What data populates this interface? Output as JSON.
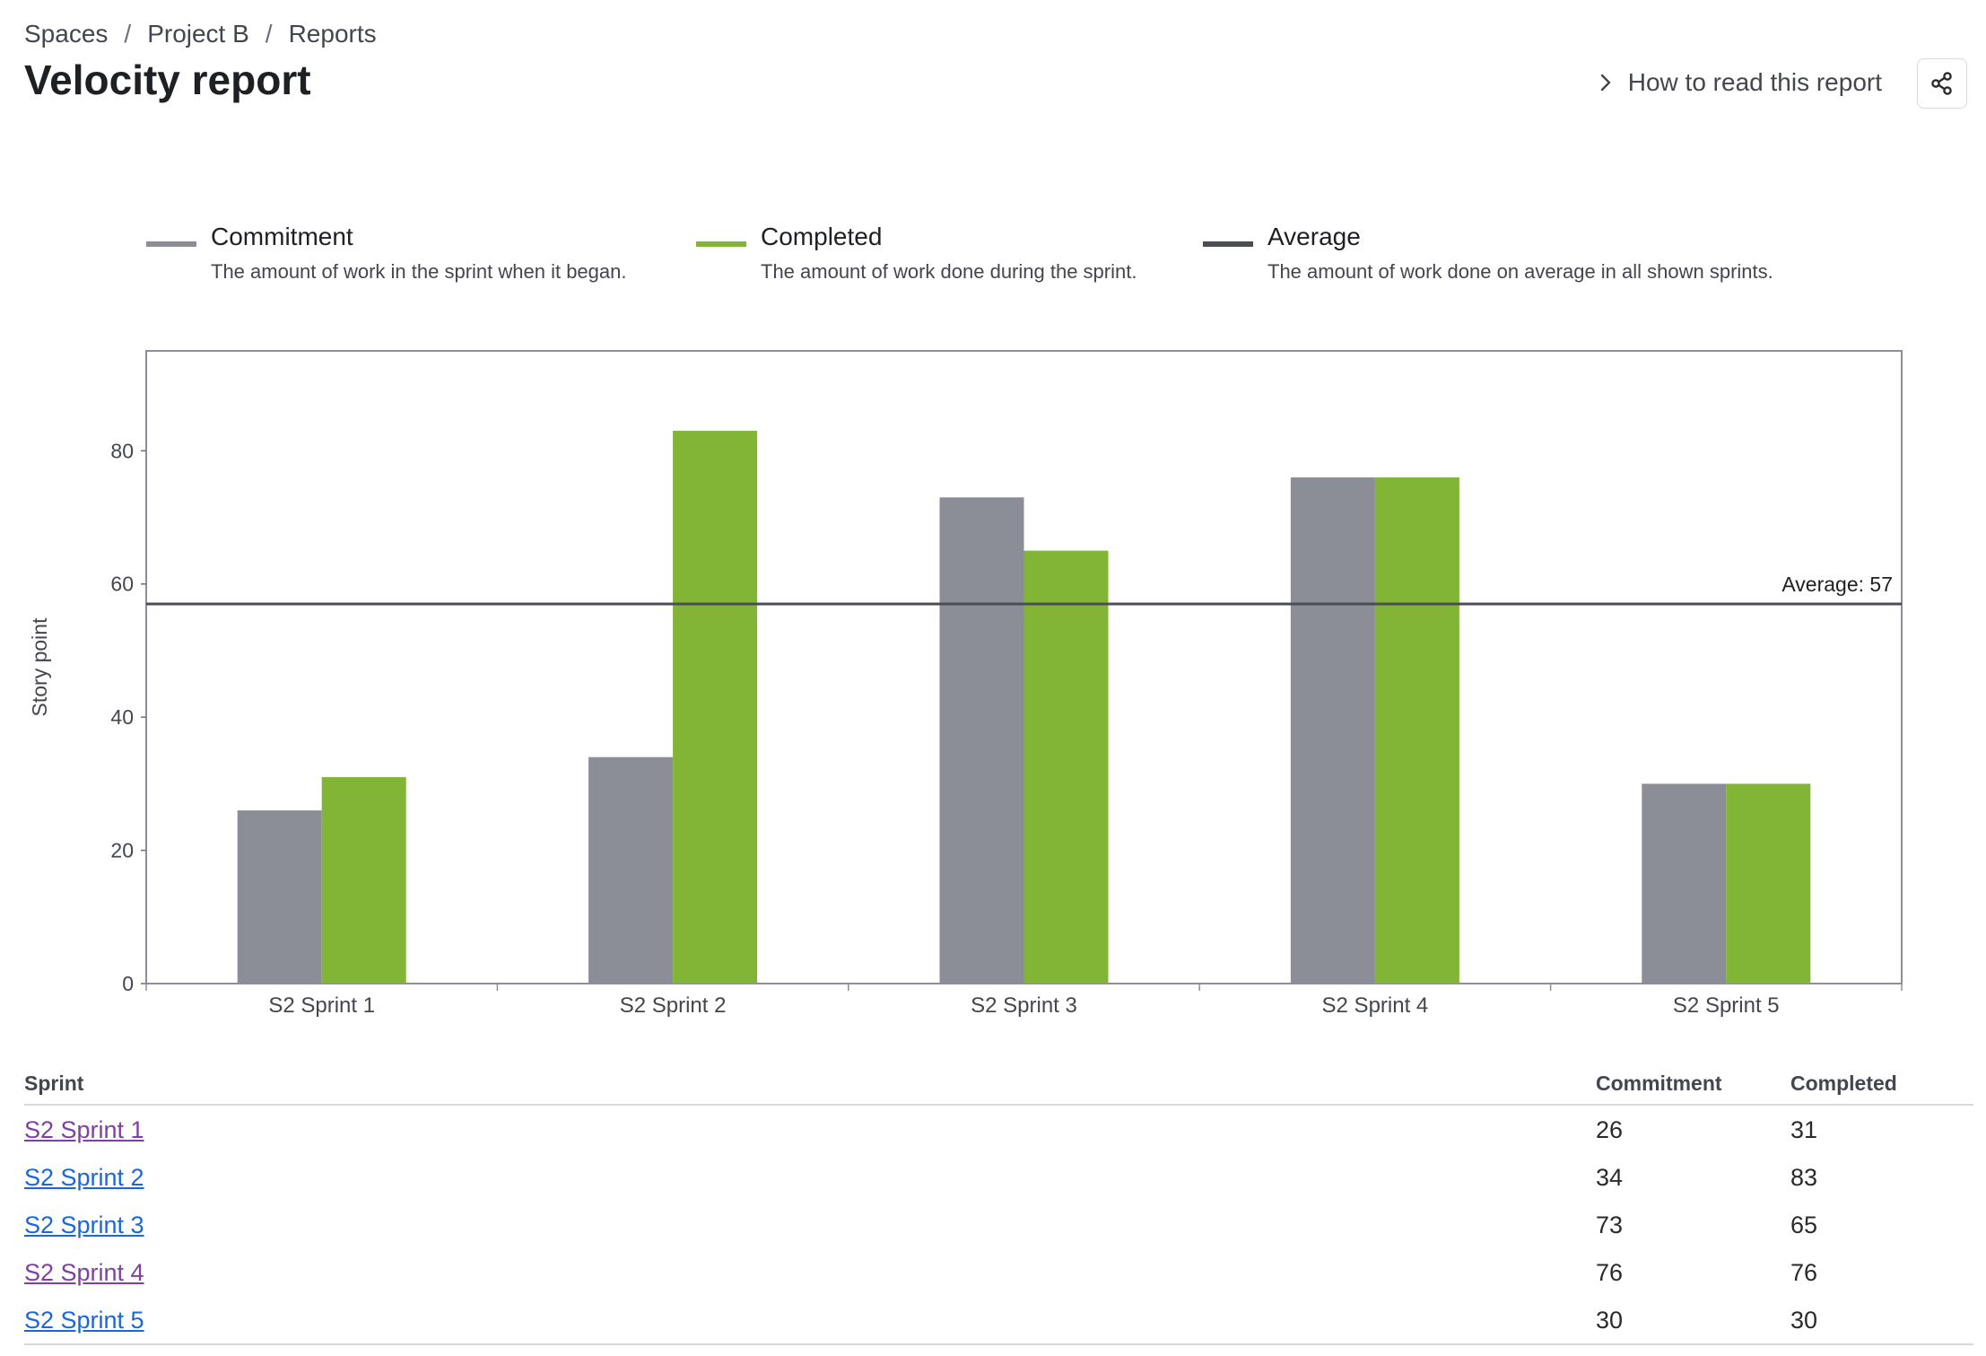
{
  "breadcrumb": [
    "Spaces",
    "Project B",
    "Reports"
  ],
  "breadcrumb_separator": "/",
  "page_title": "Velocity report",
  "how_to_read": {
    "label": "How to read this report",
    "icon": "chevron-right-icon"
  },
  "share_button": {
    "icon": "share-icon"
  },
  "legend": [
    {
      "name": "Commitment",
      "description": "The amount of work in the sprint when it began.",
      "color": "#8b8d97"
    },
    {
      "name": "Completed",
      "description": "The amount of work done during the sprint.",
      "color": "#82b536"
    },
    {
      "name": "Average",
      "description": "The amount of work done on average in all shown sprints.",
      "color": "#4b4d55"
    }
  ],
  "chart_data": {
    "type": "bar",
    "categories": [
      "S2 Sprint 1",
      "S2 Sprint 2",
      "S2 Sprint 3",
      "S2 Sprint 4",
      "S2 Sprint 5"
    ],
    "series": [
      {
        "name": "Commitment",
        "values": [
          26,
          34,
          73,
          76,
          30
        ],
        "color": "#8b8d97"
      },
      {
        "name": "Completed",
        "values": [
          31,
          83,
          65,
          76,
          30
        ],
        "color": "#82b536"
      }
    ],
    "average": {
      "value": 57,
      "label": "Average: 57",
      "color": "#4b4d55"
    },
    "ylabel": "Story point",
    "xlabel": "",
    "yticks": [
      0,
      20,
      40,
      60,
      80
    ],
    "ylim": [
      0,
      95
    ],
    "grid": false,
    "legend_position": "top"
  },
  "table": {
    "headers": [
      "Sprint",
      "Commitment",
      "Completed"
    ],
    "rows": [
      {
        "sprint": "S2 Sprint 1",
        "commitment": "26",
        "completed": "31",
        "link_color": "#803fa5"
      },
      {
        "sprint": "S2 Sprint 2",
        "commitment": "34",
        "completed": "83",
        "link_color": "#1868db"
      },
      {
        "sprint": "S2 Sprint 3",
        "commitment": "73",
        "completed": "65",
        "link_color": "#1868db"
      },
      {
        "sprint": "S2 Sprint 4",
        "commitment": "76",
        "completed": "76",
        "link_color": "#803fa5"
      },
      {
        "sprint": "S2 Sprint 5",
        "commitment": "30",
        "completed": "30",
        "link_color": "#1868db"
      }
    ]
  }
}
